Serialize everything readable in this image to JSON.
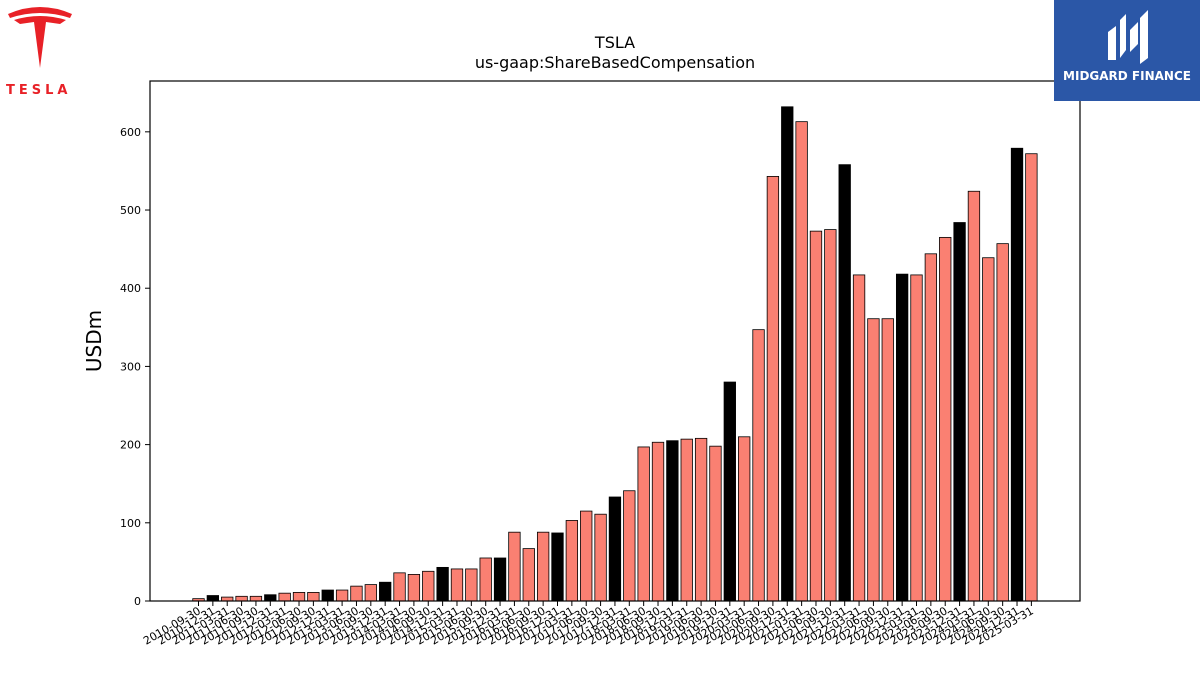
{
  "logos": {
    "left": {
      "icon": "tesla-t-icon",
      "wordmark": "TESLA",
      "color": "#e82127"
    },
    "right": {
      "icon": "midgard-m-icon",
      "text": "MIDGARD FINANCE",
      "background": "#2b57a7"
    }
  },
  "chart_data": {
    "type": "bar",
    "title": "TSLA",
    "subtitle": "us-gaap:ShareBasedCompensation",
    "ylabel": "USDm",
    "xlabel": "",
    "ylim": [
      0,
      665
    ],
    "yticks": [
      0,
      100,
      200,
      300,
      400,
      500,
      600
    ],
    "grid": false,
    "colors": {
      "quarter": "#fa8072",
      "annual": "#000000",
      "edge": "#000000"
    },
    "categories": [
      "2010-09-30",
      "2010-12-31",
      "2011-03-31",
      "2011-06-30",
      "2011-09-30",
      "2011-12-31",
      "2012-03-31",
      "2012-06-30",
      "2012-09-30",
      "2012-12-31",
      "2013-03-31",
      "2013-06-30",
      "2013-09-30",
      "2013-12-31",
      "2014-03-31",
      "2014-06-30",
      "2014-09-30",
      "2014-12-31",
      "2015-03-31",
      "2015-06-30",
      "2015-09-30",
      "2015-12-31",
      "2016-03-31",
      "2016-06-30",
      "2016-09-30",
      "2016-12-31",
      "2017-03-31",
      "2017-06-30",
      "2017-09-30",
      "2017-12-31",
      "2018-03-31",
      "2018-06-30",
      "2018-09-30",
      "2018-12-31",
      "2019-03-31",
      "2019-06-30",
      "2019-09-30",
      "2019-12-31",
      "2020-03-31",
      "2020-06-30",
      "2020-09-30",
      "2020-12-31",
      "2021-03-31",
      "2021-06-30",
      "2021-09-30",
      "2021-12-31",
      "2022-03-31",
      "2022-06-30",
      "2022-09-30",
      "2022-12-31",
      "2023-03-31",
      "2023-06-30",
      "2023-09-30",
      "2023-12-31",
      "2024-03-31",
      "2024-06-30",
      "2024-09-30",
      "2024-12-31",
      "2025-03-31"
    ],
    "values": [
      3,
      7,
      5,
      6,
      6,
      8,
      10,
      11,
      11,
      14,
      14,
      19,
      21,
      24,
      36,
      34,
      38,
      43,
      41,
      41,
      55,
      55,
      88,
      67,
      88,
      87,
      103,
      115,
      111,
      133,
      141,
      197,
      203,
      205,
      207,
      208,
      198,
      280,
      210,
      347,
      543,
      632,
      613,
      473,
      475,
      558,
      417,
      361,
      361,
      418,
      417,
      444,
      465,
      484,
      524,
      439,
      457,
      579,
      572
    ],
    "annual": [
      false,
      true,
      false,
      false,
      false,
      true,
      false,
      false,
      false,
      true,
      false,
      false,
      false,
      true,
      false,
      false,
      false,
      true,
      false,
      false,
      false,
      true,
      false,
      false,
      false,
      true,
      false,
      false,
      false,
      true,
      false,
      false,
      false,
      true,
      false,
      false,
      false,
      true,
      false,
      false,
      false,
      true,
      false,
      false,
      false,
      true,
      false,
      false,
      false,
      true,
      false,
      false,
      false,
      true,
      false,
      false,
      false,
      true,
      false
    ]
  }
}
